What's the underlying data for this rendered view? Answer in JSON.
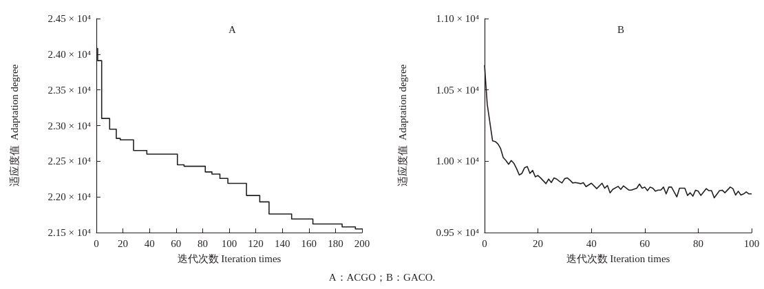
{
  "chart_data": [
    {
      "type": "step",
      "title": "A",
      "xlabel": "迭代次数 Iteration times",
      "ylabel": "适应度值  Adaptation degree",
      "marker": "none",
      "series": [
        {
          "color": "#231f20",
          "x": [
            0,
            1,
            4,
            10,
            15,
            18,
            28,
            38,
            61,
            66,
            82,
            87,
            93,
            99,
            113,
            123,
            130,
            147,
            163,
            185,
            195,
            200
          ],
          "values": [
            24080,
            23910,
            23100,
            22950,
            22820,
            22800,
            22650,
            22600,
            22450,
            22430,
            22350,
            22320,
            22260,
            22190,
            22020,
            21930,
            21760,
            21690,
            21620,
            21580,
            21550,
            21550
          ]
        }
      ],
      "xlim": [
        0,
        200
      ],
      "xticks": [
        0,
        20,
        40,
        60,
        80,
        100,
        120,
        140,
        160,
        180,
        200
      ],
      "ylim": [
        21500,
        24500
      ],
      "yticks": [
        {
          "value": 21500,
          "label": "2.15 × 10⁴"
        },
        {
          "value": 22000,
          "label": "2.20 × 10⁴"
        },
        {
          "value": 22500,
          "label": "2.25 × 10⁴"
        },
        {
          "value": 23000,
          "label": "2.30 × 10⁴"
        },
        {
          "value": 23500,
          "label": "2.35 × 10⁴"
        },
        {
          "value": 24000,
          "label": "2.40 × 10⁴"
        },
        {
          "value": 24500,
          "label": "2.45 × 10⁴"
        }
      ]
    },
    {
      "type": "line",
      "title": "B",
      "xlabel": "迭代次数 Iteration times",
      "ylabel": "适应度值  Adaptation degree",
      "marker": "none",
      "annotations": [
        "A：ACGO；B：GACO."
      ],
      "series": [
        {
          "color": "#231f20",
          "x": [
            0,
            1,
            3,
            4,
            5,
            6,
            7,
            8,
            9,
            10,
            11,
            12,
            13,
            14,
            15,
            16,
            17,
            18,
            19,
            20,
            21,
            23,
            24,
            25,
            26,
            27,
            28,
            29,
            30,
            31,
            32,
            33,
            34,
            36,
            37,
            38,
            40,
            42,
            44,
            45,
            46,
            47,
            48,
            50,
            51,
            52,
            54,
            55,
            57,
            58,
            59,
            60,
            61,
            62,
            63,
            64,
            65,
            66,
            67,
            68,
            69,
            70,
            72,
            73,
            75,
            76,
            77,
            78,
            79,
            80,
            81,
            83,
            84,
            85,
            86,
            88,
            89,
            90,
            92,
            93,
            94,
            95,
            96,
            97,
            98,
            99,
            100
          ],
          "values": [
            10673,
            10400,
            10143,
            10138,
            10122,
            10090,
            10026,
            10005,
            9979,
            10005,
            9985,
            9948,
            9904,
            9915,
            9955,
            9963,
            9915,
            9936,
            9891,
            9900,
            9883,
            9843,
            9875,
            9851,
            9883,
            9875,
            9860,
            9848,
            9878,
            9883,
            9867,
            9848,
            9851,
            9843,
            9850,
            9822,
            9846,
            9808,
            9846,
            9811,
            9830,
            9779,
            9803,
            9824,
            9803,
            9827,
            9798,
            9798,
            9811,
            9840,
            9811,
            9819,
            9794,
            9819,
            9811,
            9790,
            9798,
            9798,
            9819,
            9771,
            9819,
            9819,
            9750,
            9811,
            9811,
            9760,
            9779,
            9755,
            9797,
            9790,
            9760,
            9808,
            9794,
            9794,
            9744,
            9794,
            9797,
            9779,
            9819,
            9808,
            9763,
            9790,
            9763,
            9771,
            9785,
            9771,
            9771
          ]
        }
      ],
      "xlim": [
        0,
        100
      ],
      "xticks": [
        0,
        20,
        40,
        60,
        80,
        100
      ],
      "ylim": [
        9500,
        11000
      ],
      "yticks": [
        {
          "value": 9500,
          "label": "0.95 × 10⁴"
        },
        {
          "value": 10000,
          "label": "1.00 × 10⁴"
        },
        {
          "value": 10500,
          "label": "1.05 × 10⁴"
        },
        {
          "value": 11000,
          "label": "1.10 × 10⁴"
        }
      ]
    }
  ]
}
